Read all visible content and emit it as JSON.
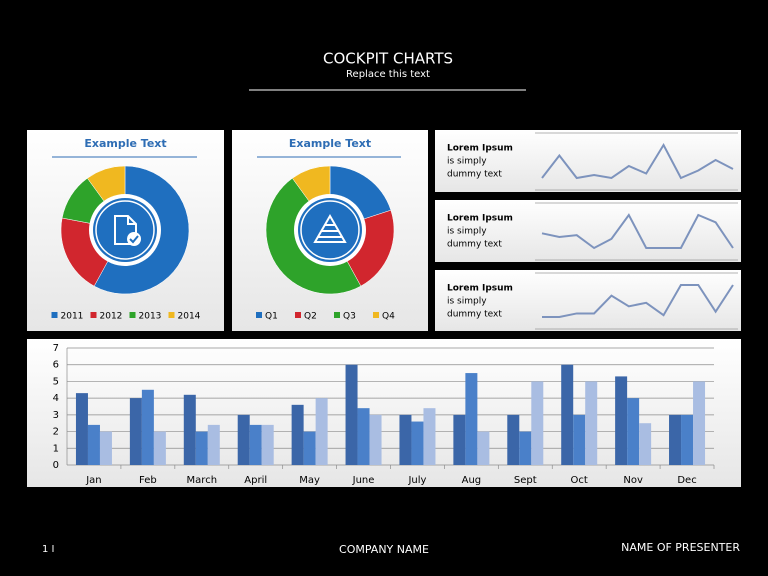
{
  "header": {
    "title": "COCKPIT CHARTS",
    "subtitle": "Replace this text"
  },
  "footer": {
    "page": "1 I",
    "company": "COMPANY NAME",
    "presenter": "NAME OF PRESENTER"
  },
  "chart_data": [
    {
      "type": "pie",
      "title": "Example Text",
      "categories": [
        "2011",
        "2012",
        "2013",
        "2014"
      ],
      "values": [
        58,
        20,
        12,
        10
      ],
      "colors": [
        "#1f6fbf",
        "#d1262e",
        "#2ea32a",
        "#f0b820"
      ]
    },
    {
      "type": "pie",
      "title": "Example Text",
      "categories": [
        "Q1",
        "Q2",
        "Q3",
        "Q4"
      ],
      "values": [
        20,
        22,
        48,
        10
      ],
      "colors": [
        "#1f6fbf",
        "#d1262e",
        "#2ea32a",
        "#f0b820"
      ]
    },
    {
      "type": "line",
      "title": "Lorem Ipsum",
      "lines": [
        "is simply",
        "dummy text"
      ],
      "color": "#7d93bd",
      "values": [
        3.0,
        4.5,
        3.0,
        3.2,
        3.0,
        3.8,
        3.3,
        5.2,
        3.0,
        3.5,
        4.2,
        3.6
      ]
    },
    {
      "type": "line",
      "title": "Lorem Ipsum",
      "lines": [
        "is simply",
        "dummy text"
      ],
      "color": "#7d93bd",
      "values": [
        4.2,
        4.0,
        4.1,
        3.4,
        3.9,
        5.2,
        3.4,
        3.4,
        3.4,
        5.2,
        4.8,
        3.4
      ]
    },
    {
      "type": "line",
      "title": "Lorem Ipsum",
      "lines": [
        "is simply",
        "dummy text"
      ],
      "color": "#7d93bd",
      "values": [
        2.0,
        2.0,
        2.2,
        2.2,
        3.2,
        2.6,
        2.8,
        2.1,
        3.8,
        3.8,
        2.3,
        3.8
      ]
    },
    {
      "type": "bar",
      "categories": [
        "Jan",
        "Feb",
        "March",
        "April",
        "May",
        "June",
        "July",
        "Aug",
        "Sept",
        "Oct",
        "Nov",
        "Dec"
      ],
      "series": [
        {
          "color": "#3b66a8",
          "values": [
            4.3,
            4.0,
            4.2,
            3.0,
            3.6,
            6.0,
            3.0,
            3.0,
            3.0,
            6.0,
            5.3,
            3.0
          ]
        },
        {
          "color": "#4a80c9",
          "values": [
            2.4,
            4.5,
            2.0,
            2.4,
            2.0,
            3.4,
            2.6,
            5.5,
            2.0,
            3.0,
            4.0,
            3.0
          ]
        },
        {
          "color": "#a9bde2",
          "values": [
            2.0,
            2.0,
            2.4,
            2.4,
            4.0,
            3.0,
            3.4,
            2.0,
            5.0,
            5.0,
            2.5,
            5.0
          ]
        }
      ],
      "ylim": [
        0,
        7
      ],
      "yticks": [
        0,
        1,
        2,
        3,
        4,
        5,
        6,
        7
      ],
      "grid": true
    }
  ]
}
